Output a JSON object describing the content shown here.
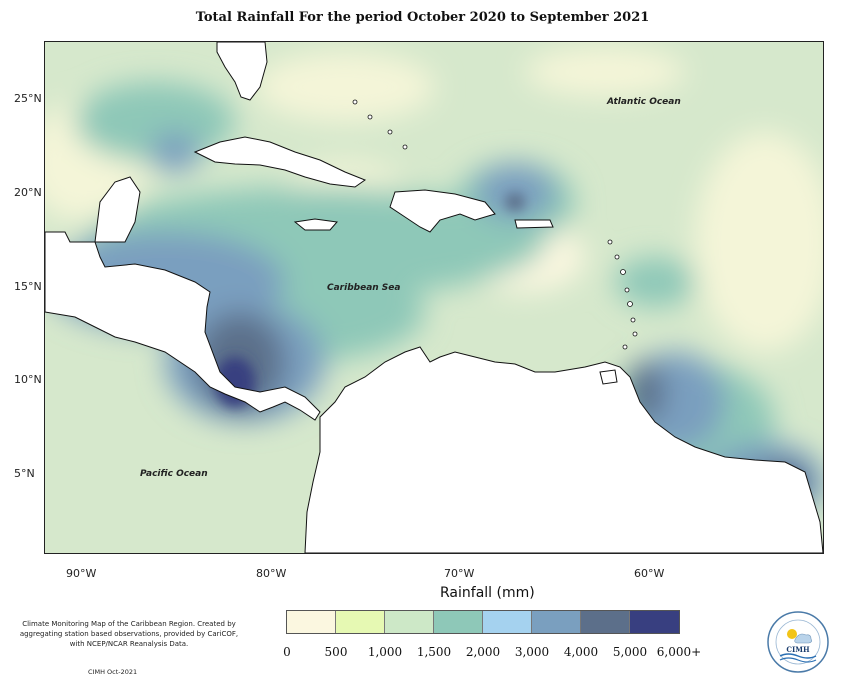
{
  "title": "Total Rainfall For the period October 2020 to September 2021",
  "map": {
    "oceans": [
      "Atlantic Ocean",
      "Caribbean Sea",
      "Pacific Ocean"
    ],
    "lat_labels": [
      "25°N",
      "20°N",
      "15°N",
      "10°N",
      "5°N"
    ],
    "lon_labels": [
      "90°W",
      "80°W",
      "70°W",
      "60°W"
    ]
  },
  "legend": {
    "title": "Rainfall (mm)",
    "colors": [
      "#fbf7e0",
      "#e6f9b3",
      "#cde8c7",
      "#8ec8b8",
      "#a5d2ef",
      "#7a9fbf",
      "#5c6f8a",
      "#383f80"
    ],
    "labels": [
      "0",
      "500",
      "1,000",
      "1,500",
      "2,000",
      "3,000",
      "4,000",
      "5,000",
      "6,000+"
    ]
  },
  "footer": {
    "description": "Climate Monitoring Map of the Caribbean Region. Created by aggregating station based observations, provided by CariCOF, with NCEP/NCAR Reanalysis Data.",
    "credit": "CIMH Oct-2021",
    "logo_text": "CIMH"
  }
}
